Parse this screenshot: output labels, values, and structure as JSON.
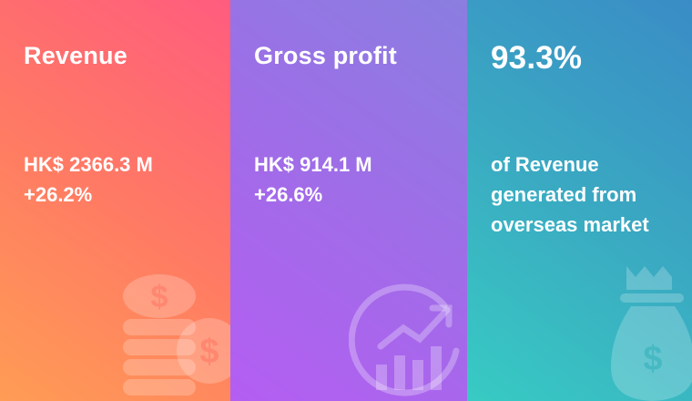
{
  "panels": [
    {
      "title": "Revenue",
      "lines": [
        "HK$ 2366.3 M",
        "+26.2%"
      ]
    },
    {
      "title": "Gross profit",
      "lines": [
        "HK$ 914.1 M",
        "+26.6%"
      ]
    },
    {
      "title": "93.3%",
      "lines": [
        "of Revenue",
        "generated from",
        "overseas market"
      ]
    }
  ]
}
